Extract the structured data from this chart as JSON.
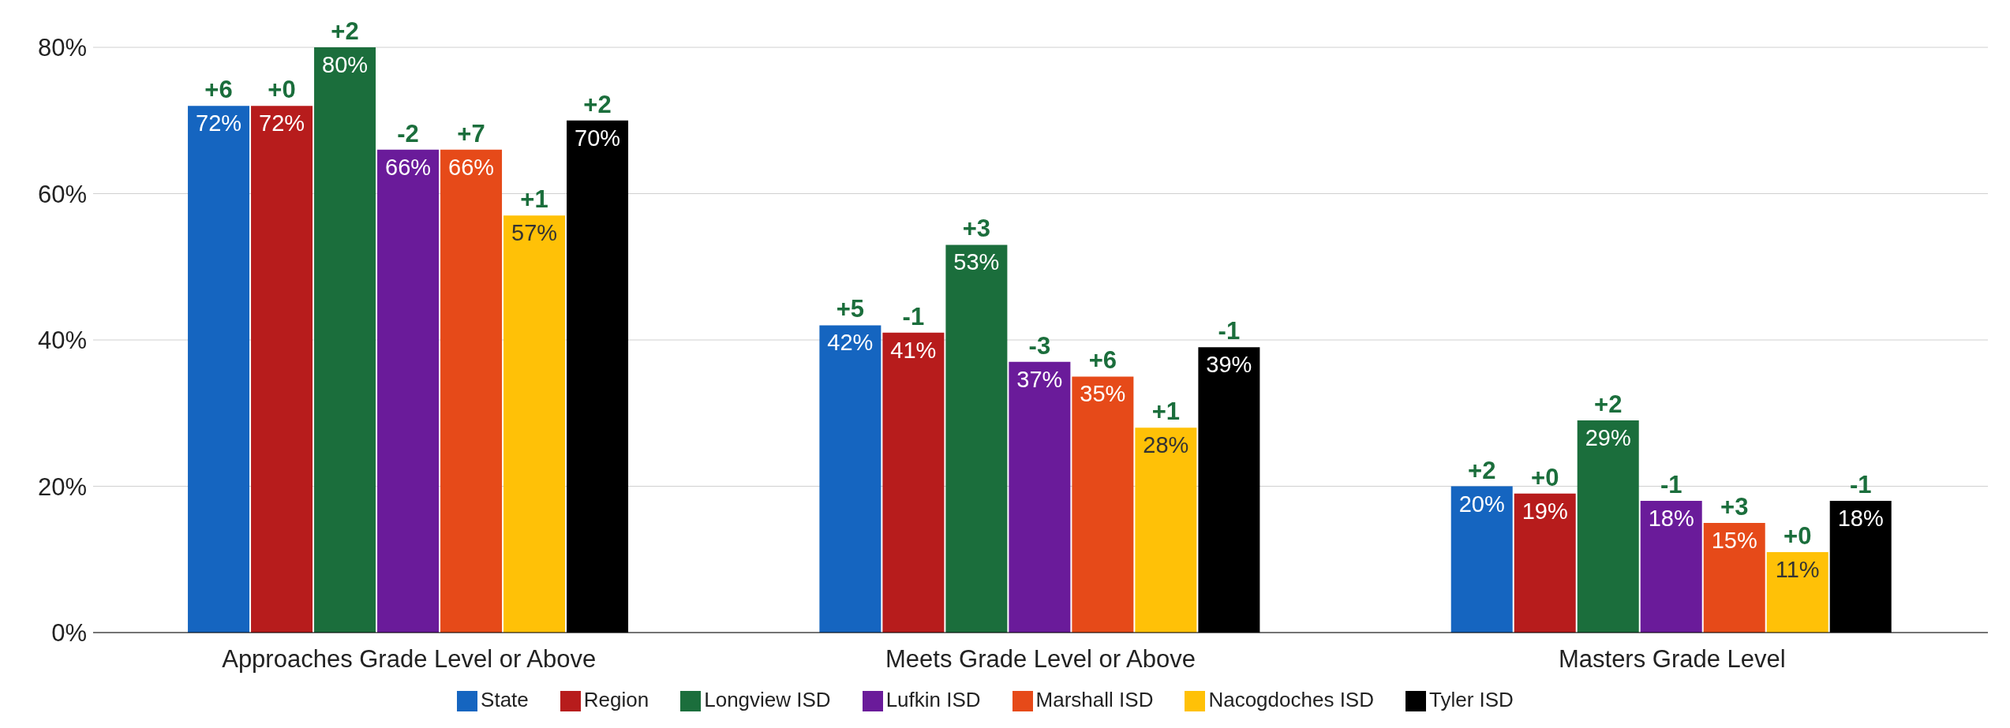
{
  "chart_data": {
    "type": "bar",
    "categories": [
      "Approaches Grade Level or Above",
      "Meets Grade Level or Above",
      "Masters Grade Level"
    ],
    "series": [
      {
        "name": "State",
        "color": "#1565c0",
        "values": [
          72,
          42,
          20
        ],
        "value_labels": [
          "72%",
          "42%",
          "20%"
        ]
      },
      {
        "name": "Region",
        "color": "#b71c1c",
        "values": [
          72,
          41,
          19
        ],
        "value_labels": [
          "72%",
          "41%",
          "19%"
        ]
      },
      {
        "name": "Longview ISD",
        "color": "#1b6e3c",
        "values": [
          80,
          53,
          29
        ],
        "value_labels": [
          "80%",
          "53%",
          "29%"
        ]
      },
      {
        "name": "Lufkin ISD",
        "color": "#6a1b9a",
        "values": [
          66,
          37,
          18
        ],
        "value_labels": [
          "66%",
          "37%",
          "18%"
        ]
      },
      {
        "name": "Marshall ISD",
        "color": "#e64a19",
        "values": [
          66,
          35,
          15
        ],
        "value_labels": [
          "66%",
          "35%",
          "15%"
        ]
      },
      {
        "name": "Nacogdoches ISD",
        "color": "#ffc107",
        "values": [
          57,
          28,
          11
        ],
        "value_labels": [
          "57%",
          "28%",
          "11%"
        ]
      },
      {
        "name": "Tyler ISD",
        "color": "#000000",
        "values": [
          70,
          39,
          18
        ],
        "value_labels": [
          "70%",
          "39%",
          "18%"
        ]
      }
    ],
    "ylim": [
      0,
      80
    ],
    "yticks": [
      {
        "value": 0,
        "label": "0%"
      },
      {
        "value": 20,
        "label": "20%"
      },
      {
        "value": 40,
        "label": "40%"
      },
      {
        "value": 60,
        "label": "60%"
      },
      {
        "value": 80,
        "label": "80%"
      }
    ],
    "grid": "y",
    "legend": "bottom",
    "annotations": [
      "+6",
      "+5",
      "+2",
      "+0",
      "-1",
      "+0",
      "+2",
      "+3",
      "+2",
      "-2",
      "-3",
      "-1",
      "+7",
      "+6",
      "+3",
      "+1",
      "+1",
      "+0",
      "+2",
      "-1",
      "-1"
    ]
  }
}
